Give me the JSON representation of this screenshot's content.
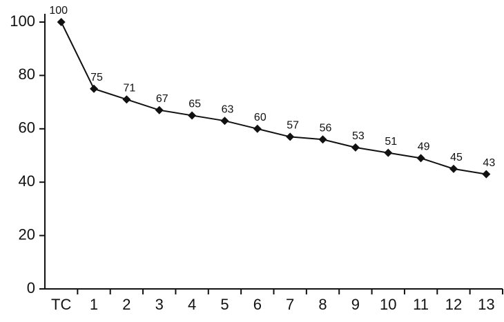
{
  "chart_data": {
    "type": "line",
    "categories": [
      "TC",
      "1",
      "2",
      "3",
      "4",
      "5",
      "6",
      "7",
      "8",
      "9",
      "10",
      "11",
      "12",
      "13"
    ],
    "values": [
      100,
      75,
      71,
      67,
      65,
      63,
      60,
      57,
      56,
      53,
      51,
      49,
      45,
      43
    ],
    "color": "#111111",
    "ylim": [
      0,
      100
    ],
    "yticks": [
      0,
      20,
      40,
      60,
      80,
      100
    ],
    "grid": false,
    "data_labels": true
  }
}
